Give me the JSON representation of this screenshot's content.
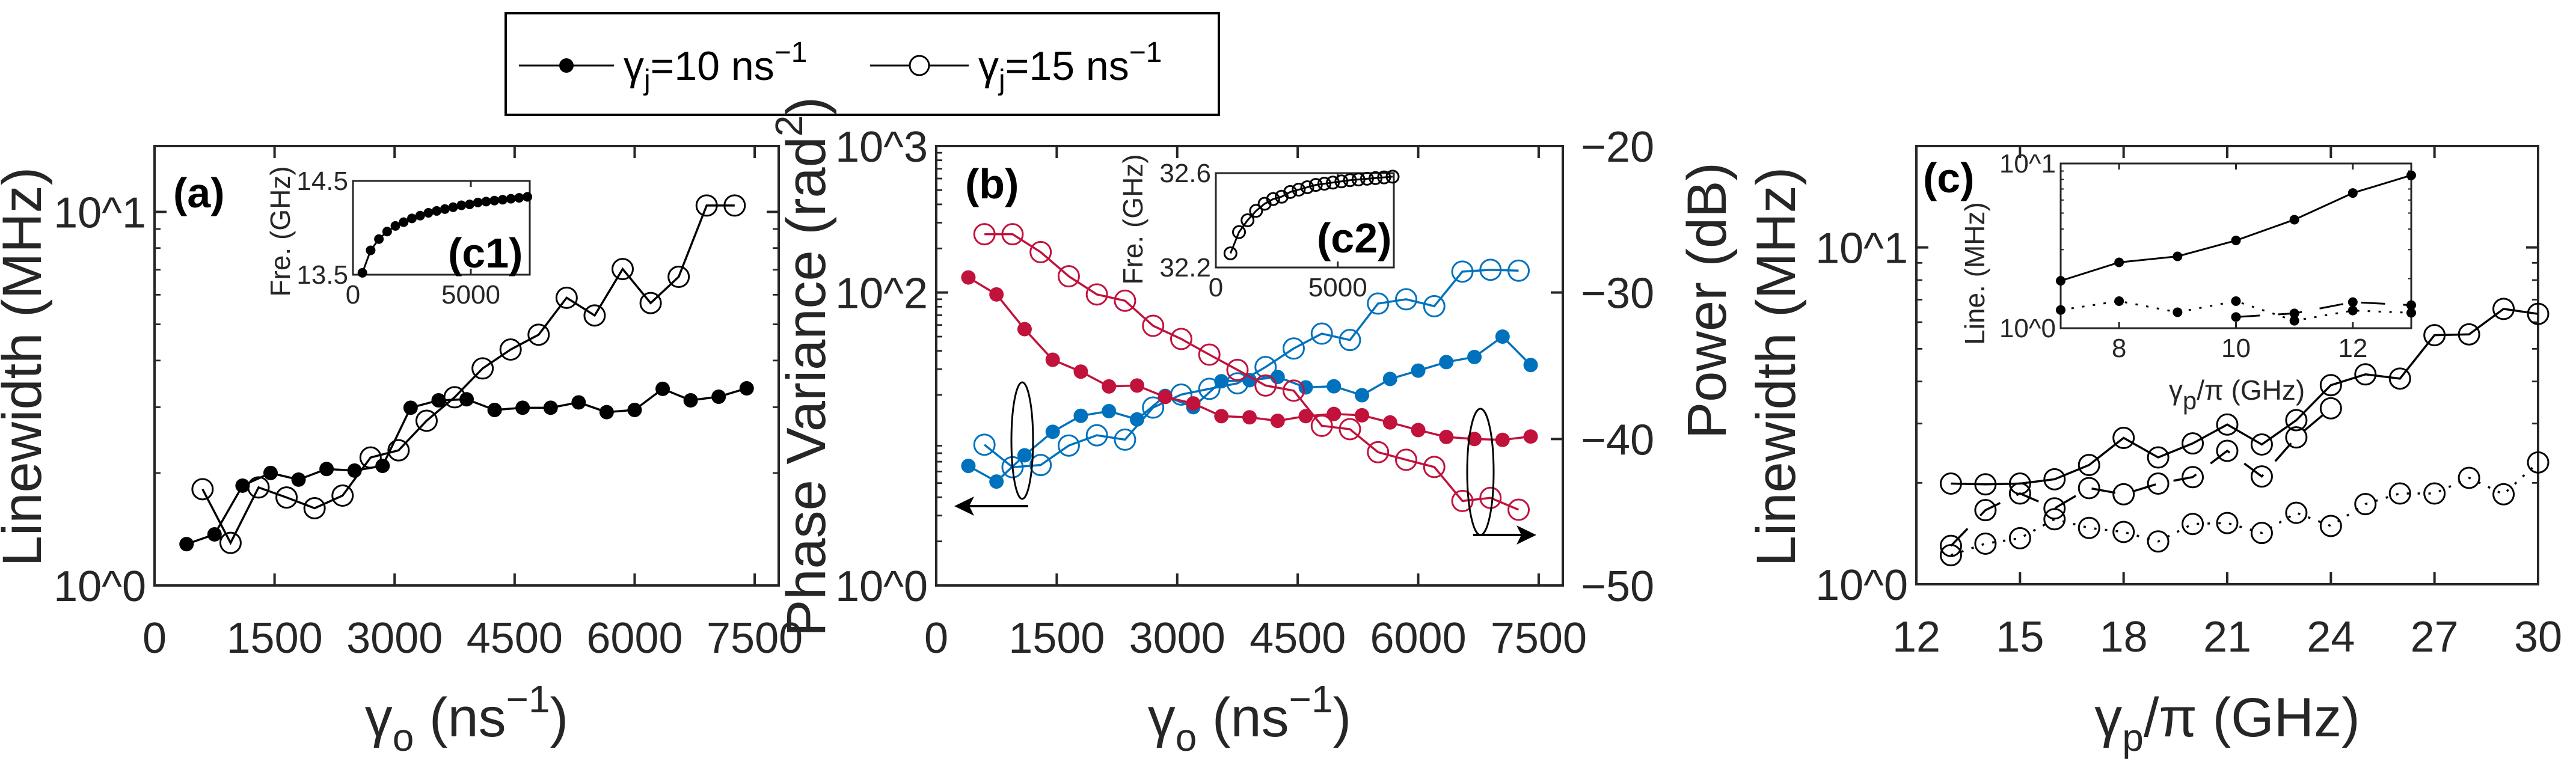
{
  "legend": {
    "entries": [
      {
        "sym": "γ",
        "sub": "j",
        "text": "=10 ns",
        "sup": "−1",
        "marker": "filled"
      },
      {
        "sym": "γ",
        "sub": "j",
        "text": "=15 ns",
        "sup": "−1",
        "marker": "open"
      }
    ]
  },
  "labels": {
    "a": {
      "panel": "(a)",
      "ylabel": "Linewidth (MHz)",
      "x_sym": "γ",
      "x_sub": "o",
      "x_rest": " (ns",
      "x_sup": "−1",
      "x_end": ")"
    },
    "c1": {
      "panel": "(c1)",
      "ylabel": "Fre. (GHz)"
    },
    "b": {
      "panel": "(b)",
      "ylabel": "Phase Variance (rad",
      "ylabel_sup": "2",
      "ylabel_end": ")",
      "y2label": "Power (dB)",
      "x_sym": "γ",
      "x_sub": "o",
      "x_rest": " (ns",
      "x_sup": "−1",
      "x_end": ")"
    },
    "c2": {
      "panel": "(c2)",
      "ylabel": "Fre. (GHz)"
    },
    "c": {
      "panel": "(c)",
      "ylabel": "Linewidth (MHz)",
      "x_sym": "γ",
      "x_sub": "p",
      "x_rest": "/π (GHz)"
    },
    "c3": {
      "ylabel": "Line. (MHz)",
      "x_sym": "γ",
      "x_sub": "p",
      "x_rest": "/π (GHz)"
    }
  },
  "colors": {
    "blue": "#0072BD",
    "red": "#C1123B",
    "black": "#000000"
  },
  "chart_data": [
    {
      "id": "a",
      "type": "line",
      "yscale": "log",
      "xlim": [
        0,
        7800
      ],
      "ylim": [
        1,
        15
      ],
      "xticks": [
        0,
        1500,
        3000,
        4500,
        6000,
        7500
      ],
      "xticklabels": [
        "0",
        "1500",
        "3000",
        "4500",
        "6000",
        "7500"
      ],
      "yticks": [
        1,
        10
      ],
      "yticklabels": [
        "10^0",
        "10^1"
      ],
      "series": [
        {
          "name": "γj=10 ns−1",
          "marker": "filled",
          "line": "solid",
          "color": "#000000",
          "x": [
            400,
            750,
            1100,
            1450,
            1800,
            2150,
            2500,
            2850,
            3200,
            3550,
            3900,
            4250,
            4600,
            4950,
            5300,
            5650,
            6000,
            6350,
            6700,
            7050,
            7400
          ],
          "y": [
            1.29,
            1.37,
            1.85,
            2.0,
            1.92,
            2.05,
            2.03,
            2.09,
            2.99,
            3.13,
            3.15,
            2.95,
            2.99,
            2.99,
            3.09,
            2.91,
            2.95,
            3.36,
            3.13,
            3.2,
            3.37
          ]
        },
        {
          "name": "γj=15 ns−1",
          "marker": "open",
          "line": "solid",
          "color": "#000000",
          "x": [
            600,
            950,
            1300,
            1650,
            2000,
            2350,
            2700,
            3050,
            3400,
            3750,
            4100,
            4450,
            4800,
            5150,
            5500,
            5850,
            6200,
            6550,
            6900,
            7250
          ],
          "y": [
            1.81,
            1.3,
            1.83,
            1.72,
            1.61,
            1.74,
            2.2,
            2.3,
            2.76,
            3.19,
            3.81,
            4.28,
            4.69,
            5.89,
            5.28,
            7.03,
            5.7,
            6.7,
            10.4,
            10.4
          ]
        }
      ]
    },
    {
      "id": "c1",
      "type": "line",
      "yscale": "linear",
      "xlim": [
        0,
        7500
      ],
      "ylim": [
        13.5,
        14.5
      ],
      "xticks": [
        0,
        5000
      ],
      "xticklabels": [
        "0",
        "5000"
      ],
      "yticks": [
        13.5,
        14.5
      ],
      "yticklabels": [
        "13.5",
        "14.5"
      ],
      "series": [
        {
          "name": "γj=10 ns−1",
          "marker": "filled",
          "line": "solid",
          "color": "#000000",
          "x": [
            400,
            750,
            1100,
            1450,
            1800,
            2150,
            2500,
            2850,
            3200,
            3550,
            3900,
            4250,
            4600,
            4950,
            5300,
            5650,
            6000,
            6350,
            6700,
            7050,
            7400
          ],
          "y": [
            13.52,
            13.76,
            13.88,
            13.96,
            14.02,
            14.06,
            14.1,
            14.13,
            14.16,
            14.18,
            14.2,
            14.22,
            14.24,
            14.25,
            14.27,
            14.28,
            14.29,
            14.3,
            14.31,
            14.32,
            14.33
          ]
        }
      ]
    },
    {
      "id": "b",
      "type": "line",
      "yscale": "log",
      "xlim": [
        0,
        7800
      ],
      "ylim": [
        1,
        1000
      ],
      "y2lim": [
        -50,
        -20
      ],
      "xticks": [
        0,
        1500,
        3000,
        4500,
        6000,
        7500
      ],
      "xticklabels": [
        "0",
        "1500",
        "3000",
        "4500",
        "6000",
        "7500"
      ],
      "yticks": [
        1,
        100,
        1000
      ],
      "yticklabels": [
        "10^0",
        "10^2",
        "10^3"
      ],
      "y2ticks": [
        -20,
        -30,
        -40,
        -50
      ],
      "y2ticklabels": [
        "−20",
        "−30",
        "−40",
        "−50"
      ],
      "series": [
        {
          "name": "Phase variance γj=10",
          "axis": "left",
          "marker": "filled",
          "line": "solid",
          "color": "#0072BD",
          "x": [
            400,
            750,
            1100,
            1450,
            1800,
            2150,
            2500,
            2850,
            3200,
            3550,
            3900,
            4250,
            4600,
            4950,
            5300,
            5650,
            6000,
            6350,
            6700,
            7050,
            7400
          ],
          "y": [
            6.55,
            5.12,
            7.74,
            11.2,
            14.4,
            15.5,
            13.6,
            19.7,
            16.5,
            24.8,
            25.2,
            26.5,
            22.5,
            22.9,
            19.9,
            25.7,
            29.3,
            33.5,
            36.3,
            50.0,
            32.0
          ]
        },
        {
          "name": "Phase variance γj=15",
          "axis": "left",
          "marker": "open",
          "line": "solid",
          "color": "#0072BD",
          "x": [
            600,
            950,
            1300,
            1650,
            2000,
            2350,
            2700,
            3050,
            3400,
            3750,
            4100,
            4450,
            4800,
            5150,
            5500,
            5850,
            6200,
            6550,
            6900,
            7250
          ],
          "y": [
            9.14,
            6.42,
            6.64,
            9.02,
            10.6,
            9.9,
            16.4,
            20.1,
            22.0,
            24.0,
            31.0,
            41.5,
            52.4,
            47.4,
            84.1,
            89.9,
            80.7,
            139,
            143,
            141
          ]
        },
        {
          "name": "Power γj=10",
          "axis": "right",
          "marker": "filled",
          "line": "solid",
          "color": "#C1123B",
          "x": [
            400,
            750,
            1100,
            1450,
            1800,
            2150,
            2500,
            2850,
            3200,
            3550,
            3900,
            4250,
            4600,
            4950,
            5300,
            5650,
            6000,
            6350,
            6700,
            7050,
            7400
          ],
          "y": [
            -28.97,
            -30.13,
            -32.5,
            -34.59,
            -35.4,
            -36.41,
            -36.35,
            -37.13,
            -37.57,
            -38.44,
            -38.52,
            -38.76,
            -38.44,
            -38.29,
            -38.38,
            -38.87,
            -39.39,
            -39.86,
            -40.0,
            -40.06,
            -39.83
          ]
        },
        {
          "name": "Power γj=15",
          "axis": "right",
          "marker": "open",
          "line": "solid",
          "color": "#C1123B",
          "x": [
            600,
            950,
            1300,
            1650,
            2000,
            2350,
            2700,
            3050,
            3400,
            3750,
            4100,
            4450,
            4800,
            5150,
            5500,
            5850,
            6200,
            6550,
            6900,
            7250
          ],
          "y": [
            -26.02,
            -26.02,
            -27.24,
            -28.89,
            -30.13,
            -30.56,
            -32.27,
            -33.17,
            -34.24,
            -35.28,
            -36.35,
            -36.7,
            -39.1,
            -39.33,
            -40.9,
            -41.42,
            -41.91,
            -44.23,
            -44.02,
            -44.83
          ]
        }
      ]
    },
    {
      "id": "c2",
      "type": "line",
      "yscale": "linear",
      "xlim": [
        0,
        7300
      ],
      "ylim": [
        32.2,
        32.6
      ],
      "xticks": [
        0,
        5000
      ],
      "xticklabels": [
        "0",
        "5000"
      ],
      "yticks": [
        32.2,
        32.6
      ],
      "yticklabels": [
        "32.2",
        "32.6"
      ],
      "series": [
        {
          "name": "γj=15 ns−1",
          "marker": "open",
          "line": "solid",
          "color": "#000000",
          "x": [
            600,
            950,
            1300,
            1650,
            2000,
            2350,
            2700,
            3050,
            3400,
            3750,
            4100,
            4450,
            4800,
            5150,
            5500,
            5850,
            6200,
            6550,
            6900,
            7250
          ],
          "y": [
            32.26,
            32.35,
            32.4,
            32.44,
            32.47,
            32.49,
            32.5,
            32.52,
            32.53,
            32.54,
            32.55,
            32.555,
            32.56,
            32.565,
            32.57,
            32.573,
            32.576,
            32.579,
            32.582,
            32.585
          ]
        }
      ]
    },
    {
      "id": "c",
      "type": "line",
      "yscale": "log",
      "xlim": [
        12,
        30
      ],
      "ylim": [
        1,
        20
      ],
      "xticks": [
        12,
        15,
        18,
        21,
        24,
        27,
        30
      ],
      "xticklabels": [
        "12",
        "15",
        "18",
        "21",
        "24",
        "27",
        "30"
      ],
      "yticks": [
        1,
        10
      ],
      "yticklabels": [
        "10^0",
        "10^1"
      ],
      "series": [
        {
          "name": "solid",
          "marker": "open",
          "line": "solid",
          "color": "#000000",
          "x": [
            13,
            14,
            15,
            16,
            17,
            18,
            19,
            20,
            21,
            22,
            23,
            24,
            25,
            26,
            27,
            28,
            29,
            30
          ],
          "y": [
            1.99,
            1.98,
            1.99,
            2.05,
            2.26,
            2.72,
            2.38,
            2.62,
            2.98,
            2.6,
            3.07,
            3.9,
            4.2,
            4.08,
            5.49,
            5.52,
            6.57,
            6.35
          ]
        },
        {
          "name": "dashed",
          "marker": "open",
          "line": "dashed",
          "color": "#000000",
          "x": [
            13,
            14,
            15,
            16,
            17,
            18,
            19,
            20,
            21,
            22,
            23,
            24
          ],
          "y": [
            1.3,
            1.66,
            1.86,
            1.68,
            1.93,
            1.85,
            1.99,
            2.08,
            2.49,
            2.09,
            2.73,
            3.33
          ]
        },
        {
          "name": "dotted",
          "marker": "open",
          "line": "dotted",
          "color": "#000000",
          "x": [
            13,
            14,
            15,
            16,
            17,
            18,
            19,
            20,
            21,
            22,
            23,
            24,
            25,
            26,
            27,
            28,
            29,
            30
          ],
          "y": [
            1.22,
            1.32,
            1.37,
            1.56,
            1.47,
            1.43,
            1.34,
            1.51,
            1.52,
            1.42,
            1.63,
            1.49,
            1.73,
            1.86,
            1.86,
            2.07,
            1.85,
            2.3
          ]
        }
      ]
    },
    {
      "id": "c3",
      "type": "line",
      "yscale": "log",
      "xlim": [
        7,
        13
      ],
      "ylim": [
        1,
        10
      ],
      "xticks": [
        8,
        10,
        12
      ],
      "xticklabels": [
        "8",
        "10",
        "12"
      ],
      "yticks": [
        1,
        10
      ],
      "yticklabels": [
        "10^0",
        "10^1"
      ],
      "series": [
        {
          "name": "solid",
          "marker": "filled",
          "line": "solid",
          "color": "#000000",
          "x": [
            7,
            8,
            9,
            10,
            11,
            12,
            13
          ],
          "y": [
            1.94,
            2.51,
            2.73,
            3.41,
            4.56,
            6.62,
            8.48
          ]
        },
        {
          "name": "dotted",
          "marker": "filled",
          "line": "dotted",
          "color": "#000000",
          "x": [
            7,
            8,
            9,
            10,
            11,
            12,
            13
          ],
          "y": [
            1.29,
            1.46,
            1.25,
            1.46,
            1.11,
            1.28,
            1.24
          ]
        },
        {
          "name": "dashed",
          "marker": "filled",
          "line": "dashed",
          "color": "#000000",
          "x": [
            10,
            11,
            12,
            13
          ],
          "y": [
            1.17,
            1.23,
            1.44,
            1.38
          ]
        }
      ]
    }
  ]
}
